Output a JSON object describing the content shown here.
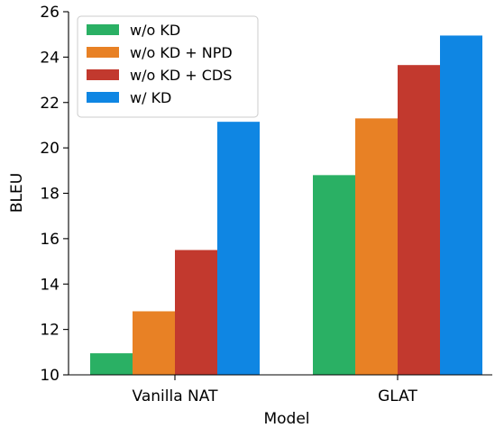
{
  "chart_data": {
    "type": "bar",
    "title": "",
    "xlabel": "Model",
    "ylabel": "BLEU",
    "categories": [
      "Vanilla NAT",
      "GLAT"
    ],
    "ylim": [
      10,
      26
    ],
    "yticks": [
      "10",
      "12",
      "14",
      "16",
      "18",
      "20",
      "22",
      "24",
      "26"
    ],
    "grid": false,
    "legend_position": "top-left",
    "series": [
      {
        "name": "w/o KD",
        "color": "#2ab064",
        "values": [
          10.95,
          18.8
        ]
      },
      {
        "name": "w/o KD + NPD",
        "color": "#e88125",
        "values": [
          12.8,
          21.3
        ]
      },
      {
        "name": "w/o KD + CDS",
        "color": "#c2392e",
        "values": [
          15.5,
          23.65
        ]
      },
      {
        "name": "w/ KD",
        "color": "#0f86e3",
        "values": [
          21.15,
          24.95
        ]
      }
    ]
  }
}
